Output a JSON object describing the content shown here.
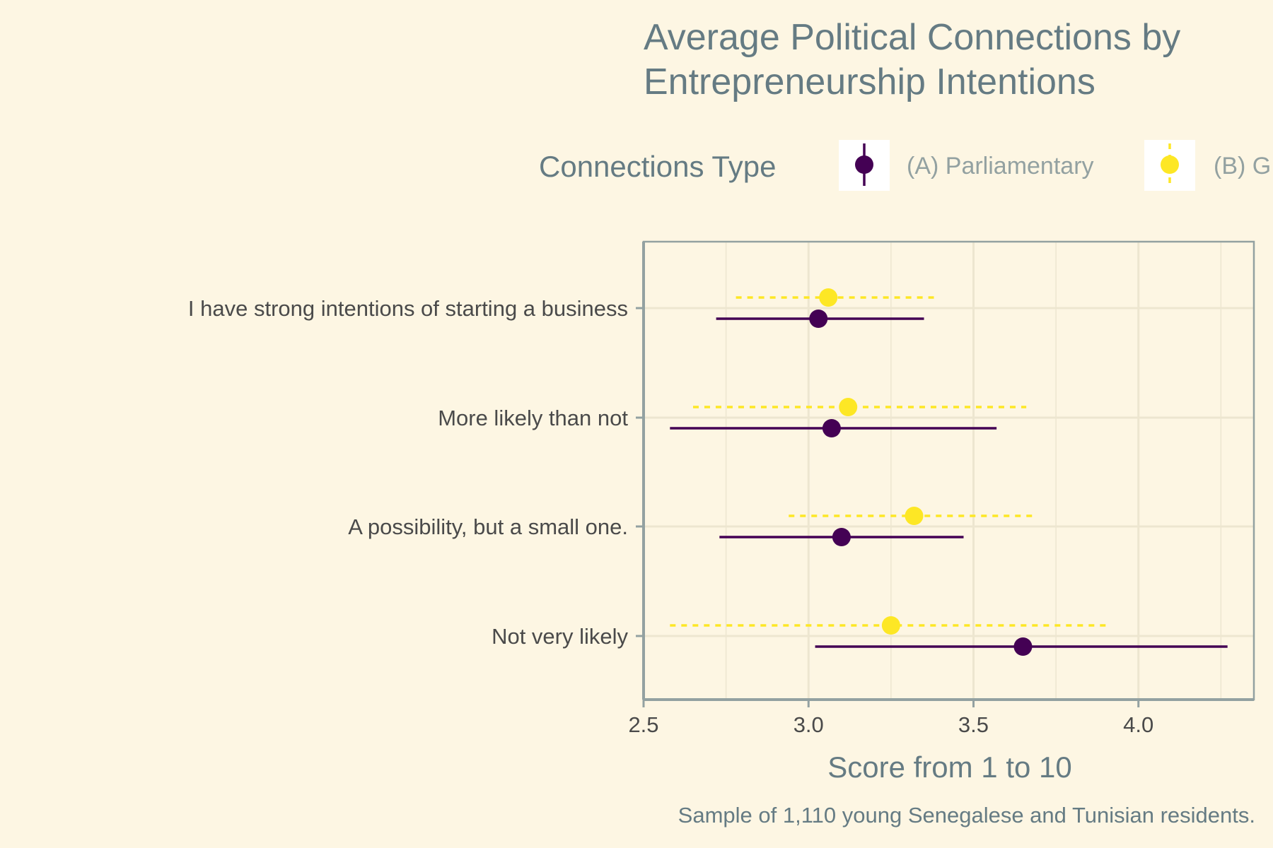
{
  "chart_data": {
    "type": "scatter",
    "title_lines": [
      "Average Political Connections by",
      "Entrepreneurship Intentions"
    ],
    "xlabel": "Score from 1 to 10",
    "caption": "Sample of 1,110 young Senegalese and Tunisian residents.",
    "xlim": [
      2.5,
      4.35
    ],
    "x_ticks": [
      2.5,
      3.0,
      3.5,
      4.0
    ],
    "x_tick_labels": [
      "2.5",
      "3.0",
      "3.5",
      "4.0"
    ],
    "categories": [
      "I have strong intentions of starting a business",
      "More likely than not",
      "A possibility, but a small one.",
      "Not very likely"
    ],
    "legend": {
      "title": "Connections Type",
      "placement": "top",
      "entries": [
        "(A) Parliamentary",
        "(B) G"
      ]
    },
    "series": [
      {
        "name": "(A) Parliamentary",
        "color": "#440154",
        "line_style": "solid",
        "values": [
          3.03,
          3.07,
          3.1,
          3.65
        ],
        "lower": [
          2.72,
          2.58,
          2.73,
          3.02
        ],
        "upper": [
          3.35,
          3.57,
          3.47,
          4.27
        ]
      },
      {
        "name": "(B) G",
        "color": "#fde725",
        "line_style": "dashed",
        "values": [
          3.06,
          3.12,
          3.32,
          3.25
        ],
        "lower": [
          2.78,
          2.65,
          2.94,
          2.58
        ],
        "upper": [
          3.38,
          3.66,
          3.68,
          3.91
        ]
      }
    ],
    "grid": true,
    "grid_color": "#ede6d0",
    "axis_color": "#93a1a1",
    "background": "#fdf6e3"
  }
}
